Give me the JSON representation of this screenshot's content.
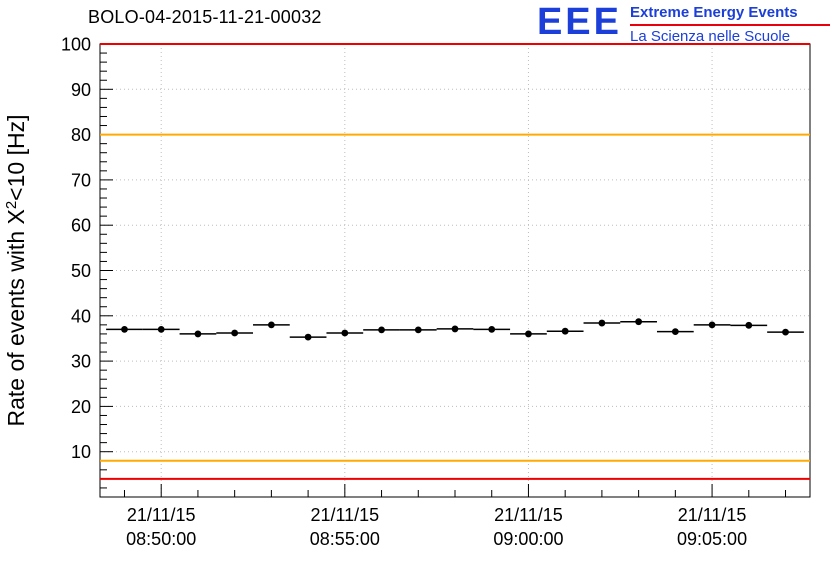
{
  "header": {
    "title": "BOLO-04-2015-11-21-00032",
    "logo": {
      "acronym": "EEE",
      "line1": "Extreme Energy Events",
      "line2": "La Scienza nelle Scuole",
      "text_color": "#1b3fd8",
      "divider_color": "#e8000d"
    }
  },
  "chart_data": {
    "type": "scatter",
    "title": "BOLO-04-2015-11-21-00032",
    "ylabel": "Rate of events with X²<10 [Hz]",
    "ylabel_parts": {
      "pre": "Rate of events with X",
      "sup": "2",
      "post": "<10 [Hz]"
    },
    "ylim": [
      0,
      100
    ],
    "ytick_step": 10,
    "ytick_labels": [
      10,
      20,
      30,
      40,
      50,
      60,
      70,
      80,
      90,
      100
    ],
    "grid": true,
    "x_axis": {
      "start_s": 0,
      "end_s": 1160,
      "minor_tick_s": 60,
      "label_positions_s": [
        100,
        400,
        700,
        1000
      ]
    },
    "xtick_labels": [
      {
        "date": "21/11/15",
        "time": "08:50:00"
      },
      {
        "date": "21/11/15",
        "time": "08:55:00"
      },
      {
        "date": "21/11/15",
        "time": "09:00:00"
      },
      {
        "date": "21/11/15",
        "time": "09:05:00"
      }
    ],
    "reference_lines": [
      {
        "y": 100,
        "color": "#ee0000",
        "name": "upper-alarm"
      },
      {
        "y": 80,
        "color": "#ffaa00",
        "name": "upper-warning"
      },
      {
        "y": 8,
        "color": "#ffaa00",
        "name": "lower-warning"
      },
      {
        "y": 4,
        "color": "#ee0000",
        "name": "lower-alarm"
      }
    ],
    "marker_color": "#000000",
    "points": [
      {
        "t_s": 40,
        "rate": 37.0,
        "xerr_s": 30,
        "yerr": 0.5
      },
      {
        "t_s": 100,
        "rate": 37.0,
        "xerr_s": 30,
        "yerr": 0.5
      },
      {
        "t_s": 160,
        "rate": 36.0,
        "xerr_s": 30,
        "yerr": 0.5
      },
      {
        "t_s": 220,
        "rate": 36.2,
        "xerr_s": 30,
        "yerr": 0.5
      },
      {
        "t_s": 280,
        "rate": 38.0,
        "xerr_s": 30,
        "yerr": 0.5
      },
      {
        "t_s": 340,
        "rate": 35.3,
        "xerr_s": 30,
        "yerr": 0.5
      },
      {
        "t_s": 400,
        "rate": 36.2,
        "xerr_s": 30,
        "yerr": 0.5
      },
      {
        "t_s": 460,
        "rate": 36.9,
        "xerr_s": 30,
        "yerr": 0.5
      },
      {
        "t_s": 520,
        "rate": 36.9,
        "xerr_s": 30,
        "yerr": 0.5
      },
      {
        "t_s": 580,
        "rate": 37.1,
        "xerr_s": 30,
        "yerr": 0.5
      },
      {
        "t_s": 640,
        "rate": 37.0,
        "xerr_s": 30,
        "yerr": 0.5
      },
      {
        "t_s": 700,
        "rate": 36.0,
        "xerr_s": 30,
        "yerr": 0.5
      },
      {
        "t_s": 760,
        "rate": 36.6,
        "xerr_s": 30,
        "yerr": 0.5
      },
      {
        "t_s": 820,
        "rate": 38.4,
        "xerr_s": 30,
        "yerr": 0.5
      },
      {
        "t_s": 880,
        "rate": 38.7,
        "xerr_s": 30,
        "yerr": 0.5
      },
      {
        "t_s": 940,
        "rate": 36.5,
        "xerr_s": 30,
        "yerr": 0.5
      },
      {
        "t_s": 1000,
        "rate": 38.0,
        "xerr_s": 30,
        "yerr": 0.5
      },
      {
        "t_s": 1060,
        "rate": 37.9,
        "xerr_s": 30,
        "yerr": 0.5
      },
      {
        "t_s": 1120,
        "rate": 36.4,
        "xerr_s": 30,
        "yerr": 0.5
      }
    ]
  }
}
